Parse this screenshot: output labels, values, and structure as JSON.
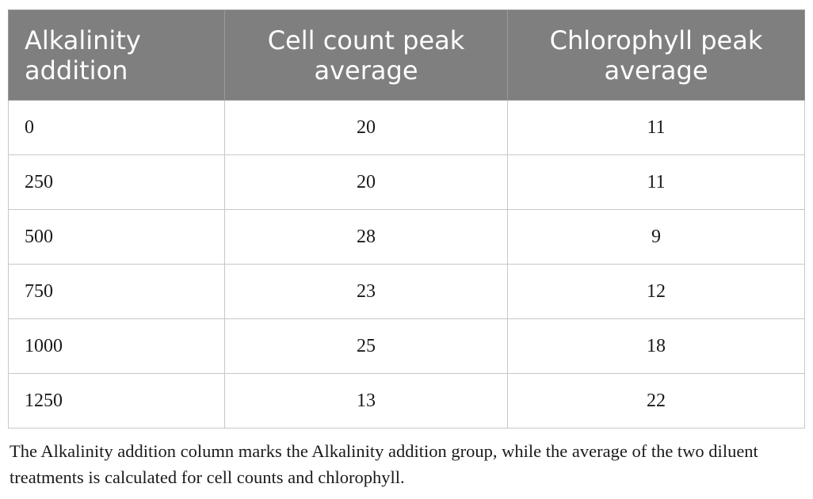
{
  "table": {
    "headers": [
      "Alkalinity addition",
      "Cell count peak average",
      "Chlorophyll peak average"
    ],
    "rows": [
      [
        "0",
        "20",
        "11"
      ],
      [
        "250",
        "20",
        "11"
      ],
      [
        "500",
        "28",
        "9"
      ],
      [
        "750",
        "23",
        "12"
      ],
      [
        "1000",
        "25",
        "18"
      ],
      [
        "1250",
        "13",
        "22"
      ]
    ]
  },
  "footnote": "The Alkalinity addition column marks the Alkalinity addition group, while the average of the two diluent treatments is calculated for cell counts and chlorophyll."
}
